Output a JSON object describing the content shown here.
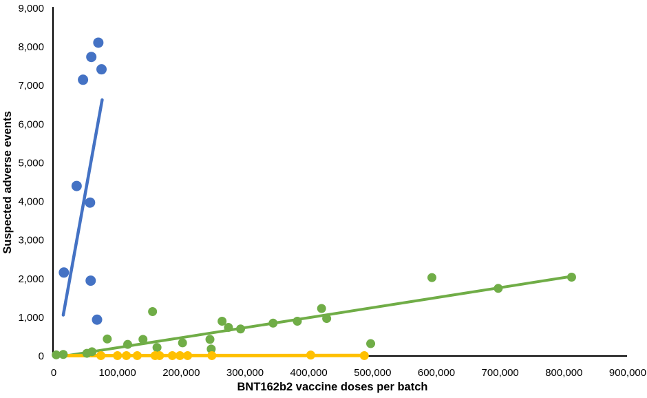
{
  "chart_data": {
    "type": "scatter",
    "title": "",
    "xlabel": "BNT162b2 vaccine doses per batch",
    "ylabel": "Suspected adverse events",
    "xlim": [
      0,
      900000
    ],
    "ylim": [
      0,
      9000
    ],
    "grid": false,
    "legend": false,
    "x_tick_labels": [
      "0",
      "100,000",
      "200,000",
      "300,000",
      "400,000",
      "500,000",
      "600,000",
      "700,000",
      "800,000",
      "900,000"
    ],
    "y_tick_labels": [
      "0",
      "1,000",
      "2,000",
      "3,000",
      "4,000",
      "5,000",
      "6,000",
      "7,000",
      "8,000",
      "9,000"
    ],
    "axis_color": "#000000",
    "series": [
      {
        "name": "blue",
        "color": "#4472C4",
        "points": [
          [
            16000,
            2160
          ],
          [
            36000,
            4400
          ],
          [
            46000,
            7150
          ],
          [
            57000,
            3970
          ],
          [
            58000,
            1950
          ],
          [
            59000,
            7740
          ],
          [
            68000,
            940
          ],
          [
            70000,
            8110
          ],
          [
            75000,
            7420
          ]
        ],
        "trendline": {
          "x1": 15000,
          "y1": 1060,
          "x2": 76000,
          "y2": 6630
        }
      },
      {
        "name": "green",
        "color": "#70AD47",
        "points": [
          [
            4000,
            30
          ],
          [
            15000,
            40
          ],
          [
            52000,
            70
          ],
          [
            60000,
            110
          ],
          [
            84000,
            440
          ],
          [
            116000,
            300
          ],
          [
            140000,
            430
          ],
          [
            155000,
            1150
          ],
          [
            162000,
            220
          ],
          [
            202000,
            340
          ],
          [
            245000,
            430
          ],
          [
            247000,
            180
          ],
          [
            264000,
            900
          ],
          [
            274000,
            740
          ],
          [
            293000,
            700
          ],
          [
            344000,
            850
          ],
          [
            382000,
            900
          ],
          [
            420000,
            1230
          ],
          [
            428000,
            970
          ],
          [
            497000,
            320
          ],
          [
            593000,
            2030
          ],
          [
            697000,
            1750
          ],
          [
            812000,
            2040
          ]
        ],
        "trendline": {
          "x1": 17000,
          "y1": 0,
          "x2": 812000,
          "y2": 2060
        }
      },
      {
        "name": "yellow",
        "color": "#FFC000",
        "points": [
          [
            74000,
            10
          ],
          [
            100000,
            10
          ],
          [
            114000,
            10
          ],
          [
            131000,
            10
          ],
          [
            159000,
            10
          ],
          [
            166000,
            10
          ],
          [
            186000,
            10
          ],
          [
            198000,
            10
          ],
          [
            210000,
            10
          ],
          [
            248000,
            10
          ],
          [
            403000,
            25
          ],
          [
            487000,
            10
          ]
        ],
        "trendline": {
          "x1": 2000,
          "y1": 8,
          "x2": 488000,
          "y2": 14
        }
      }
    ]
  }
}
